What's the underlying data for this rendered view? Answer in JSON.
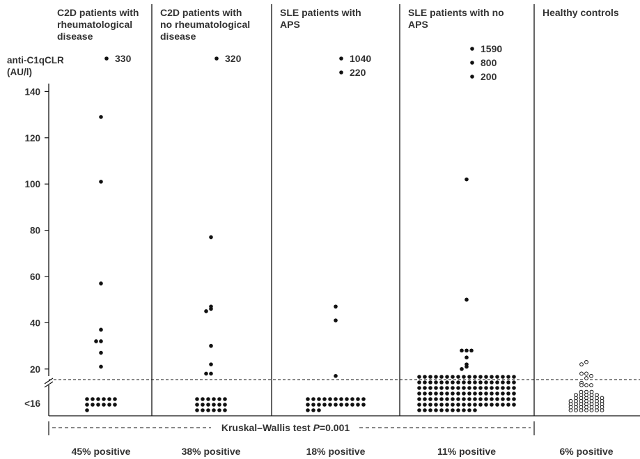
{
  "chart_data": {
    "type": "scatter",
    "title": "",
    "ylabel": "anti-C1qCLR\n(AU/l)",
    "xlabel": "",
    "ylim": [
      16,
      140
    ],
    "y_ticks": [
      "140",
      "120",
      "100",
      "80",
      "60",
      "40",
      "20",
      "<16"
    ],
    "cutoff_line": "dashed line just above 16 AU/l",
    "groups": [
      {
        "name": "C2D patients with\nrheumatological\ndisease",
        "values": [
          129,
          101,
          57,
          37,
          32,
          32,
          27,
          21
        ],
        "off_scale_values": [
          "330"
        ],
        "below_16_rows": [
          6,
          6,
          1
        ],
        "marker": "filled",
        "percent_label": "45% positive"
      },
      {
        "name": "C2D patients with\nno rheumatological\ndisease",
        "values": [
          77,
          47,
          46,
          45,
          30,
          22,
          18,
          18
        ],
        "off_scale_values": [
          "320"
        ],
        "below_16_rows": [
          6,
          6,
          6
        ],
        "marker": "filled",
        "percent_label": "38% positive"
      },
      {
        "name": "SLE patients with\nAPS",
        "values": [
          47,
          41,
          17
        ],
        "off_scale_values": [
          "1040",
          "220"
        ],
        "below_16_rows": [
          11,
          11,
          3
        ],
        "marker": "filled",
        "percent_label": "18% positive"
      },
      {
        "name": "SLE patients with no\nAPS",
        "values": [
          102,
          50,
          28,
          28,
          28,
          25,
          22,
          21,
          20
        ],
        "off_scale_values": [
          "1590",
          "800",
          "200"
        ],
        "below_16_rows": [
          18,
          18,
          18,
          18,
          18,
          18,
          11
        ],
        "marker": "filled",
        "percent_label": "11% positive"
      },
      {
        "name": "Healthy controls",
        "values": [
          23,
          22,
          18,
          18,
          17,
          16,
          14,
          13,
          13,
          13
        ],
        "off_scale_values": [],
        "below_16_columns": [
          4,
          6,
          7,
          7,
          7,
          6,
          5
        ],
        "marker": "open",
        "percent_label": "6% positive"
      }
    ],
    "annotation": {
      "text_prefix": "Kruskal–Wallis test ",
      "p_symbol": "P",
      "text_suffix": "=0.001"
    }
  }
}
